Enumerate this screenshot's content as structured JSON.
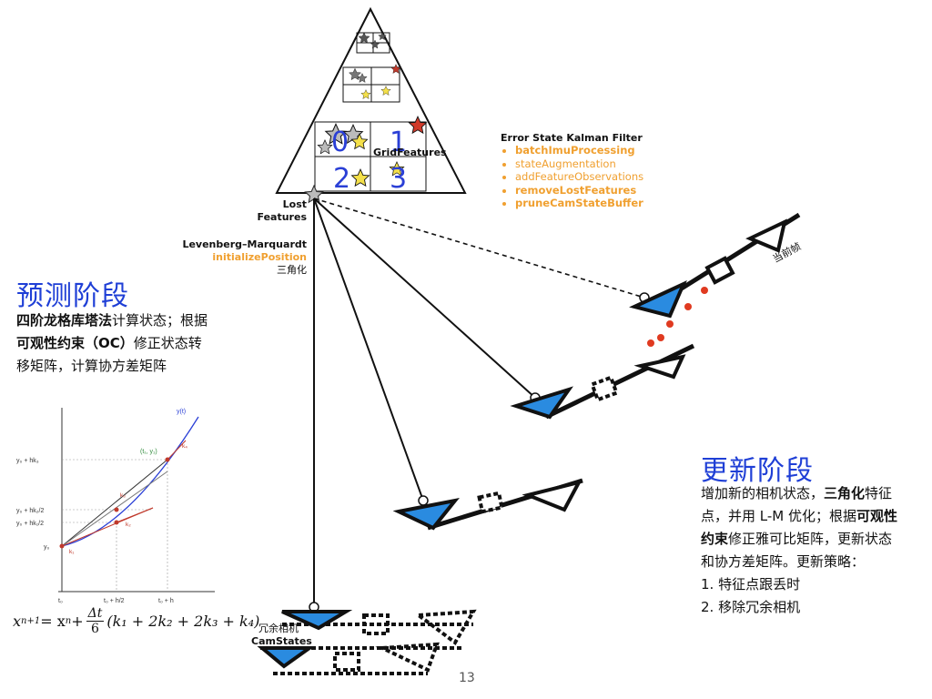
{
  "pyramid": {
    "grid_label": "GridFeatures",
    "digits": [
      "0",
      "1",
      "2",
      "3"
    ]
  },
  "ekf": {
    "title": "Error State Kalman Filter",
    "items": [
      {
        "label": "batchImuProcessing",
        "bold": true
      },
      {
        "label": "stateAugmentation",
        "bold": false
      },
      {
        "label": "addFeatureObservations",
        "bold": false
      },
      {
        "label": "removeLostFeatures",
        "bold": true
      },
      {
        "label": "pruneCamStateBuffer",
        "bold": true
      }
    ]
  },
  "lost_features": {
    "line1": "Lost",
    "line2": "Features"
  },
  "lm": {
    "title": "Levenberg–Marquardt",
    "func": "initializePosition",
    "note": "三角化"
  },
  "current_frame_label": "当前帧",
  "predict": {
    "title": "预测阶段",
    "line1_bold": "四阶龙格库塔法",
    "line1_rest": "计算状态；根据",
    "line2_bold": "可观性约束（OC）",
    "line2_rest": "修正状态转",
    "line3": "移矩阵，计算协方差矩阵"
  },
  "update": {
    "title": "更新阶段",
    "l1a": "增加新的相机状态，",
    "l1b": "三角化",
    "l1c": "特征",
    "l2": "点，并用 L-M 优化；根据",
    "l2b": "可观性",
    "l3a": "约束",
    "l3b": "修正雅可比矩阵，更新状态",
    "l4": "和协方差矩阵。更新策略：",
    "items": [
      "1.  特征点跟丢时",
      "2.  移除冗余相机"
    ]
  },
  "redundant": {
    "line1": "冗余相机",
    "line2": "CamStates"
  },
  "rk_plot": {
    "curve_label": "y(t)",
    "point_label": "(t₁, y₁)",
    "y_ticks": [
      "y₀ + hk₃",
      "y₀ + hk₂/2",
      "y₀ + hk₁/2",
      "y₀"
    ],
    "x_ticks": [
      "t₀",
      "t₀ + h/2",
      "t₀ + h"
    ],
    "k_labels": [
      "k₁",
      "k₂",
      "k₃",
      "k₄"
    ]
  },
  "formula": {
    "lhs": "x",
    "lhs_sub": "n+1",
    "eq": " = x",
    "eq_sub": "n",
    "plus": " + ",
    "num": "Δt",
    "den": "6",
    "paren": "(k₁ + 2k₂ + 2k₃ + k₄)"
  },
  "page_number": "13",
  "colors": {
    "blue": "#2a8be0",
    "accent": "#f0a030",
    "title": "#1f3fd6",
    "red_dot": "#e03a20"
  }
}
